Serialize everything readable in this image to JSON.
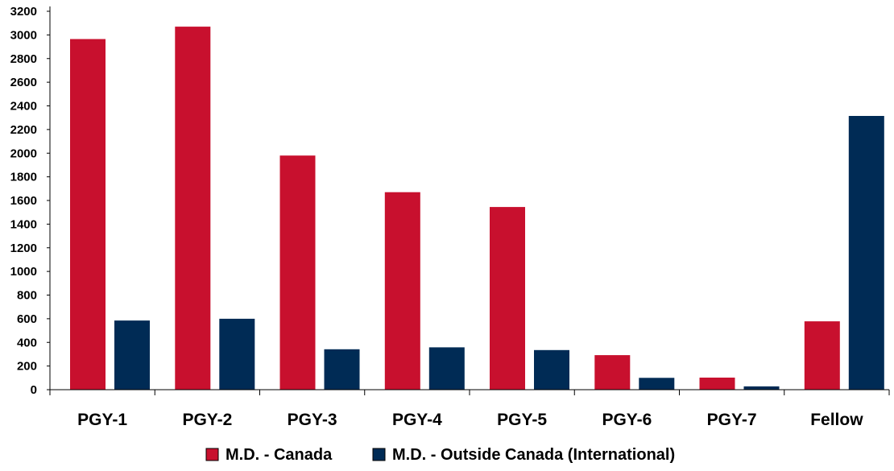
{
  "chart_data": {
    "type": "bar",
    "categories": [
      "PGY-1",
      "PGY-2",
      "PGY-3",
      "PGY-4",
      "PGY-5",
      "PGY-6",
      "PGY-7",
      "Fellow"
    ],
    "series": [
      {
        "name": "M.D. - Canada",
        "color": "#c8102e",
        "values": [
          2965,
          3070,
          1980,
          1670,
          1545,
          292,
          102,
          578
        ]
      },
      {
        "name": "M.D. - Outside Canada (International)",
        "color": "#002b55",
        "values": [
          585,
          600,
          342,
          358,
          335,
          100,
          28,
          2315
        ]
      }
    ],
    "ylim": [
      0,
      3200
    ],
    "yticks": [
      0,
      200,
      400,
      600,
      800,
      1000,
      1200,
      1400,
      1600,
      1800,
      2000,
      2200,
      2400,
      2600,
      2800,
      3000,
      3200
    ],
    "title": "",
    "xlabel": "",
    "ylabel": "",
    "grid": false,
    "legend_position": "bottom"
  }
}
